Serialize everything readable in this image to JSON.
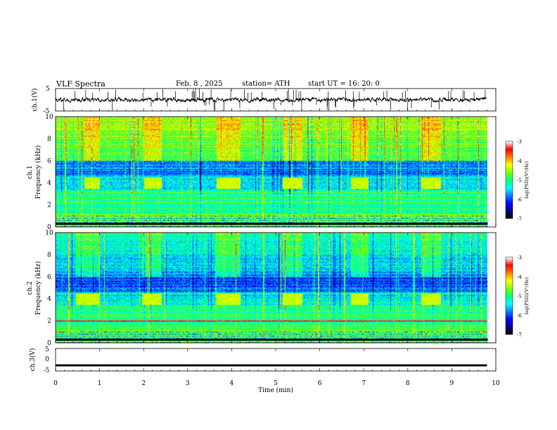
{
  "header": {
    "title": "VLF  Spectra",
    "date": "Feb. 8  , 2025",
    "station": "station= ATH",
    "start_ut": "start  UT  =    16: 20: 0"
  },
  "chart_data": [
    {
      "type": "line",
      "ylabel": "ch.1(V)",
      "yticks": [
        "5",
        "-5"
      ],
      "ylim": [
        -5,
        5
      ],
      "xlim": [
        0,
        10
      ],
      "trace": "noisy waveform centered near 0 V with spike transients",
      "data_span_min": 9.8
    },
    {
      "type": "heatmap",
      "ylabel": "ch.1\nFrequency  (kHz)",
      "ylabel_line1": "ch.1",
      "ylabel_line2": "Frequency  (kHz)",
      "yticks": [
        "10",
        "8",
        "6",
        "4",
        "2",
        "0"
      ],
      "ylim": [
        0,
        10
      ],
      "xlim": [
        0,
        10
      ],
      "data_span_min": 9.8,
      "colorbar": {
        "label": "log(PSD)(V²/Hz)",
        "ticks": [
          "-3",
          "-4",
          "-5",
          "-6",
          "-7"
        ],
        "range": [
          -7,
          -3
        ]
      },
      "bursts_min": [
        [
          0.65,
          1.0
        ],
        [
          2.0,
          2.4
        ],
        [
          3.65,
          4.2
        ],
        [
          5.15,
          5.6
        ],
        [
          6.7,
          7.1
        ],
        [
          8.3,
          8.75
        ]
      ],
      "burst_band_khz": [
        3.5,
        4.5
      ]
    },
    {
      "type": "heatmap",
      "ylabel_line1": "ch.2",
      "ylabel_line2": "Frequency  (kHz)",
      "yticks": [
        "10",
        "8",
        "6",
        "4",
        "2",
        "0"
      ],
      "ylim": [
        0,
        10
      ],
      "xlim": [
        0,
        10
      ],
      "data_span_min": 9.8,
      "colorbar": {
        "label": "log(PSD)(V²/Hz)",
        "ticks": [
          "-3",
          "-4",
          "-5",
          "-6",
          "-7"
        ],
        "range": [
          -7,
          -3
        ]
      },
      "bursts_min": [
        [
          0.45,
          1.0
        ],
        [
          1.95,
          2.4
        ],
        [
          3.65,
          4.2
        ],
        [
          5.15,
          5.6
        ],
        [
          6.7,
          7.1
        ],
        [
          8.3,
          8.75
        ]
      ],
      "burst_band_khz": [
        3.5,
        4.5
      ]
    },
    {
      "type": "line",
      "ylabel": "ch.3(V)",
      "yticks": [
        "5",
        "0",
        "-5"
      ],
      "ylim": [
        -5,
        5
      ],
      "xlim": [
        0,
        10
      ],
      "trace": "flat thick line near -2.5 V",
      "constant_value": -2.5,
      "data_span_min": 9.8
    }
  ],
  "xaxis": {
    "label": "Time  (min)",
    "ticks": [
      "0",
      "1",
      "2",
      "3",
      "4",
      "5",
      "6",
      "7",
      "8",
      "9",
      "10"
    ]
  },
  "colors": {
    "colormap": [
      "#000000",
      "#000080",
      "#0000ff",
      "#0080ff",
      "#00ffff",
      "#00ff80",
      "#80ff00",
      "#ffff00",
      "#ff8000",
      "#ff0000",
      "#ffffff"
    ]
  }
}
